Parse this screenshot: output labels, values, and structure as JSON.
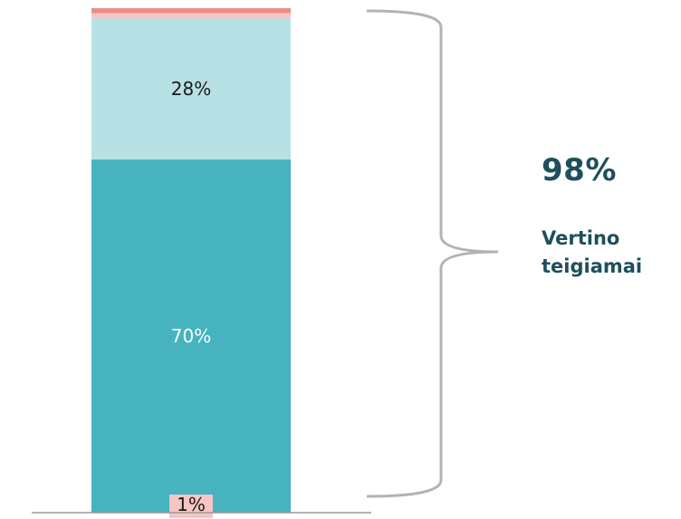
{
  "chart_data": {
    "type": "bar",
    "stacked": true,
    "categories": [
      ""
    ],
    "series": [
      {
        "value": 70,
        "label": "70%",
        "color": "#46b3be",
        "label_color": "#ffffff"
      },
      {
        "value": 28,
        "label": "28%",
        "color": "#b8e1e5",
        "label_color": "#1a1a1a"
      },
      {
        "value": 1,
        "label": "1%",
        "color": "#f7c5c3",
        "label_color": "#1a1a1a"
      },
      {
        "value": 1,
        "label": "",
        "color": "#ea8e8a",
        "label_color": "#1a1a1a"
      }
    ],
    "ylim": [
      0,
      100
    ],
    "annotation": {
      "value": "98%",
      "text": "Vertino teigiamai",
      "color": "#1e4f5c"
    },
    "axis_color": "#9a9a9a",
    "bracket_color": "#b3b3b3"
  }
}
